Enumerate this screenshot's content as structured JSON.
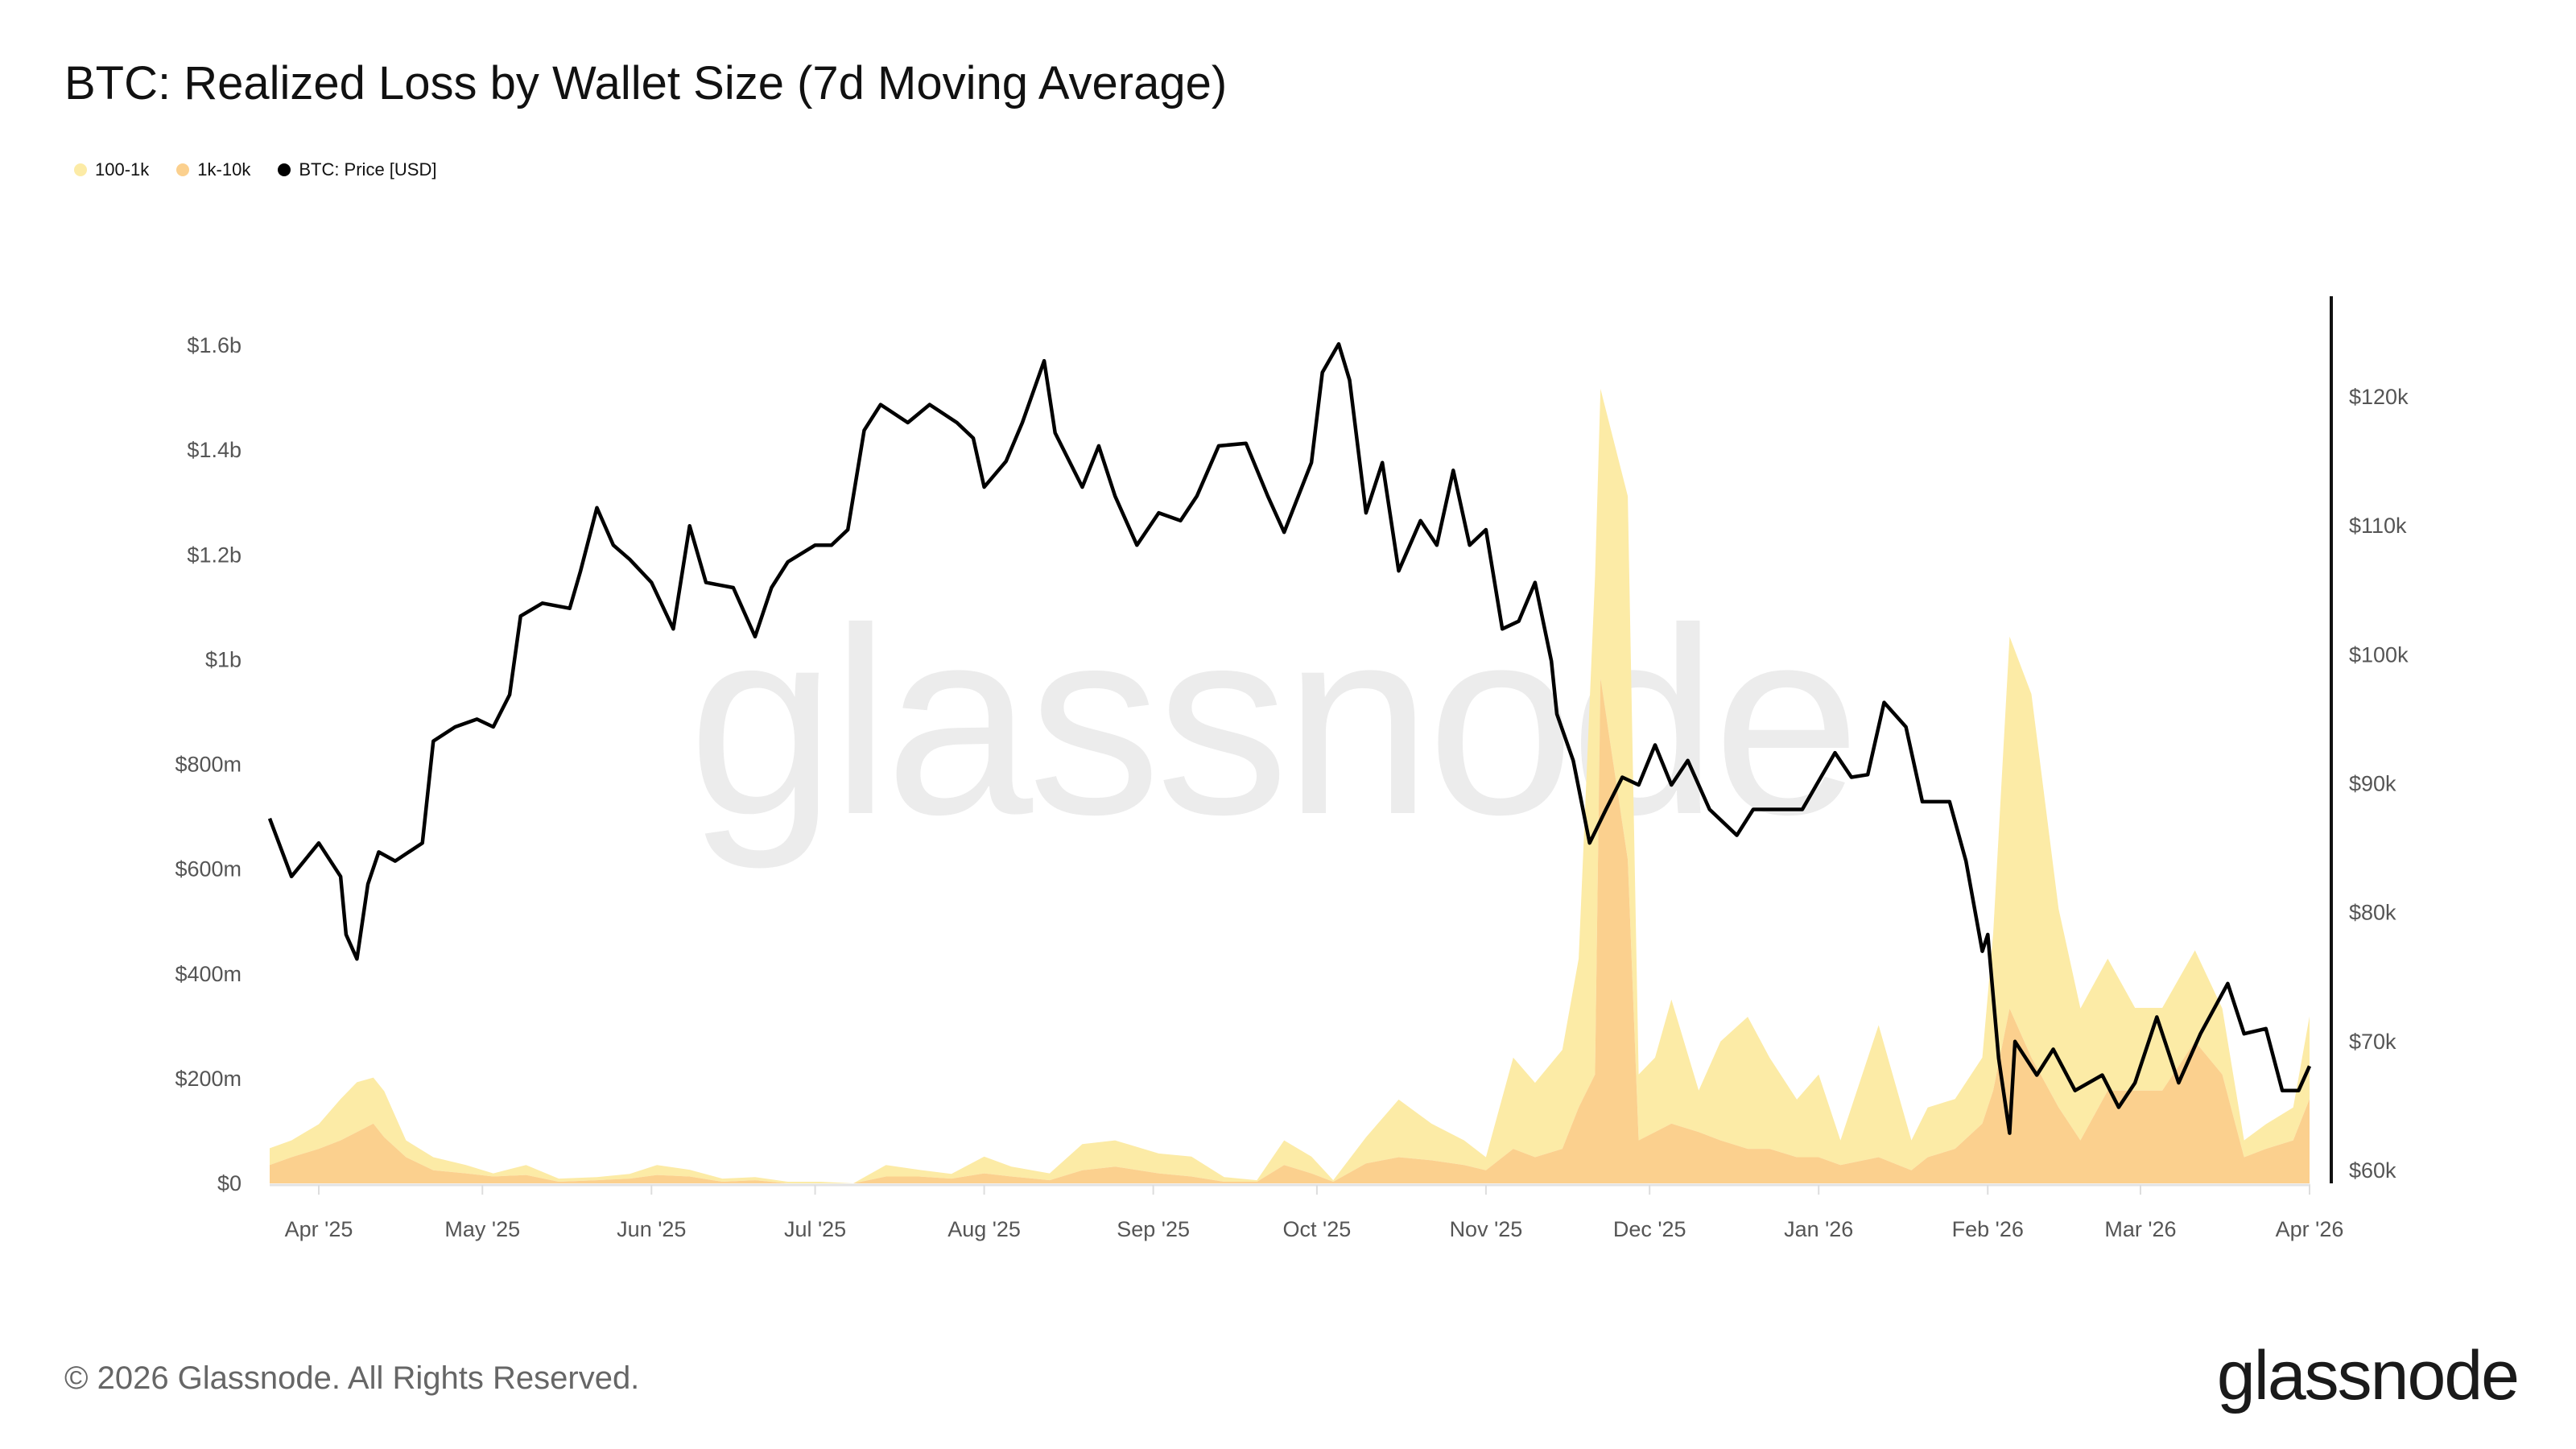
{
  "title": "BTC: Realized Loss by Wallet Size (7d Moving Average)",
  "legend": [
    {
      "label": "100-1k",
      "color": "#FCEBA6"
    },
    {
      "label": "1k-10k",
      "color": "#FBD08E"
    },
    {
      "label": "BTC: Price [USD]",
      "color": "#000000"
    }
  ],
  "watermark": "glassnode",
  "footer": {
    "copyright": "© 2026 Glassnode. All Rights Reserved.",
    "logo": "glassnode"
  },
  "chart_data": {
    "type": "area",
    "stacked": true,
    "title": "BTC: Realized Loss by Wallet Size (7d Moving Average)",
    "x_ticks": [
      "Apr '25",
      "May '25",
      "Jun '25",
      "Jul '25",
      "Aug '25",
      "Sep '25",
      "Oct '25",
      "Nov '25",
      "Dec '25",
      "Jan '26",
      "Feb '26",
      "Mar '26",
      "Apr '26"
    ],
    "x_tick_dates": [
      "2025-04-01",
      "2025-05-01",
      "2025-06-01",
      "2025-07-01",
      "2025-08-01",
      "2025-09-01",
      "2025-10-01",
      "2025-11-01",
      "2025-12-01",
      "2026-01-01",
      "2026-02-01",
      "2026-03-01",
      "2026-04-01"
    ],
    "y_left": {
      "unit": "USD",
      "range_millions": [
        0,
        1600
      ],
      "ticks": [
        "$0",
        "$200m",
        "$400m",
        "$600m",
        "$800m",
        "$1b",
        "$1.2b",
        "$1.4b",
        "$1.6b"
      ],
      "tick_values_millions": [
        0,
        200,
        400,
        600,
        800,
        1000,
        1200,
        1400,
        1600
      ]
    },
    "y_right": {
      "unit": "USD",
      "range_thousands": [
        60,
        120
      ],
      "ticks": [
        "$60k",
        "$70k",
        "$80k",
        "$90k",
        "$100k",
        "$110k",
        "$120k"
      ],
      "tick_values_thousands": [
        60,
        70,
        80,
        90,
        100,
        110,
        120
      ]
    },
    "grid": false,
    "legend_position": "top-left",
    "loss_dates": [
      "2025-03-23",
      "2025-03-27",
      "2025-04-01",
      "2025-04-05",
      "2025-04-08",
      "2025-04-11",
      "2025-04-13",
      "2025-04-17",
      "2025-04-22",
      "2025-04-28",
      "2025-05-03",
      "2025-05-09",
      "2025-05-15",
      "2025-05-22",
      "2025-05-28",
      "2025-06-02",
      "2025-06-08",
      "2025-06-14",
      "2025-06-20",
      "2025-06-26",
      "2025-07-02",
      "2025-07-08",
      "2025-07-14",
      "2025-07-20",
      "2025-07-26",
      "2025-08-01",
      "2025-08-06",
      "2025-08-13",
      "2025-08-19",
      "2025-08-25",
      "2025-09-02",
      "2025-09-08",
      "2025-09-14",
      "2025-09-20",
      "2025-09-25",
      "2025-09-30",
      "2025-10-04",
      "2025-10-10",
      "2025-10-16",
      "2025-10-22",
      "2025-10-28",
      "2025-11-01",
      "2025-11-06",
      "2025-11-10",
      "2025-11-15",
      "2025-11-18",
      "2025-11-21",
      "2025-11-22",
      "2025-11-27",
      "2025-11-29",
      "2025-12-02",
      "2025-12-05",
      "2025-12-10",
      "2025-12-14",
      "2025-12-19",
      "2025-12-23",
      "2025-12-28",
      "2026-01-01",
      "2026-01-05",
      "2026-01-12",
      "2026-01-18",
      "2026-01-21",
      "2026-01-26",
      "2026-01-31",
      "2026-02-02",
      "2026-02-05",
      "2026-02-09",
      "2026-02-14",
      "2026-02-18",
      "2026-02-23",
      "2026-02-28",
      "2026-03-05",
      "2026-03-11",
      "2026-03-16",
      "2026-03-20",
      "2026-03-24",
      "2026-03-29",
      "2026-04-01"
    ],
    "series": [
      {
        "name": "1k-10k",
        "axis": "left",
        "unit": "USD millions",
        "color": "#FBD08E",
        "values": [
          35,
          50,
          66,
          82,
          98,
          114,
          88,
          50,
          25,
          19,
          13,
          16,
          3,
          6,
          9,
          16,
          13,
          3,
          6,
          0,
          0,
          0,
          13,
          13,
          9,
          19,
          13,
          6,
          25,
          32,
          19,
          13,
          3,
          3,
          35,
          19,
          3,
          38,
          50,
          44,
          35,
          25,
          66,
          50,
          66,
          145,
          208,
          965,
          618,
          82,
          98,
          114,
          98,
          82,
          66,
          66,
          50,
          50,
          35,
          50,
          25,
          50,
          66,
          114,
          177,
          334,
          240,
          145,
          82,
          177,
          177,
          177,
          271,
          208,
          50,
          66,
          82,
          161
        ]
      },
      {
        "name": "100-1k",
        "axis": "left",
        "unit": "USD millions",
        "color": "#FCEBA6",
        "values": [
          32,
          32,
          47,
          79,
          95,
          88,
          88,
          32,
          25,
          16,
          6,
          19,
          6,
          6,
          9,
          19,
          13,
          6,
          6,
          3,
          3,
          0,
          22,
          13,
          9,
          32,
          19,
          13,
          50,
          50,
          38,
          38,
          9,
          3,
          47,
          32,
          3,
          50,
          110,
          70,
          47,
          25,
          174,
          142,
          189,
          284,
          950,
          552,
          694,
          126,
          142,
          237,
          79,
          189,
          252,
          174,
          110,
          158,
          47,
          252,
          57,
          95,
          95,
          126,
          300,
          710,
          694,
          379,
          252,
          252,
          158,
          158,
          174,
          126,
          32,
          47,
          63,
          158
        ]
      },
      {
        "name": "BTC: Price [USD]",
        "axis": "right",
        "type": "line",
        "unit": "USD thousands",
        "color": "#000000",
        "dates": [
          "2025-03-23",
          "2025-03-27",
          "2025-04-01",
          "2025-04-05",
          "2025-04-06",
          "2025-04-08",
          "2025-04-10",
          "2025-04-12",
          "2025-04-15",
          "2025-04-20",
          "2025-04-22",
          "2025-04-26",
          "2025-04-30",
          "2025-05-03",
          "2025-05-06",
          "2025-05-08",
          "2025-05-12",
          "2025-05-17",
          "2025-05-19",
          "2025-05-22",
          "2025-05-25",
          "2025-05-28",
          "2025-06-01",
          "2025-06-05",
          "2025-06-08",
          "2025-06-11",
          "2025-06-16",
          "2025-06-20",
          "2025-06-23",
          "2025-06-26",
          "2025-07-01",
          "2025-07-04",
          "2025-07-07",
          "2025-07-10",
          "2025-07-13",
          "2025-07-18",
          "2025-07-22",
          "2025-07-27",
          "2025-07-30",
          "2025-08-01",
          "2025-08-05",
          "2025-08-08",
          "2025-08-12",
          "2025-08-14",
          "2025-08-19",
          "2025-08-22",
          "2025-08-25",
          "2025-08-29",
          "2025-09-02",
          "2025-09-06",
          "2025-09-09",
          "2025-09-13",
          "2025-09-18",
          "2025-09-22",
          "2025-09-25",
          "2025-09-30",
          "2025-10-02",
          "2025-10-05",
          "2025-10-07",
          "2025-10-10",
          "2025-10-13",
          "2025-10-16",
          "2025-10-20",
          "2025-10-23",
          "2025-10-26",
          "2025-10-29",
          "2025-11-01",
          "2025-11-04",
          "2025-11-07",
          "2025-11-10",
          "2025-11-13",
          "2025-11-14",
          "2025-11-17",
          "2025-11-20",
          "2025-11-23",
          "2025-11-26",
          "2025-11-29",
          "2025-12-02",
          "2025-12-05",
          "2025-12-08",
          "2025-12-12",
          "2025-12-17",
          "2025-12-20",
          "2025-12-24",
          "2025-12-29",
          "2026-01-04",
          "2026-01-07",
          "2026-01-10",
          "2026-01-13",
          "2026-01-17",
          "2026-01-20",
          "2026-01-25",
          "2026-01-28",
          "2026-01-31",
          "2026-02-01",
          "2026-02-03",
          "2026-02-05",
          "2026-02-06",
          "2026-02-10",
          "2026-02-13",
          "2026-02-17",
          "2026-02-22",
          "2026-02-25",
          "2026-02-28",
          "2026-03-04",
          "2026-03-08",
          "2026-03-12",
          "2026-03-17",
          "2026-03-20",
          "2026-03-24",
          "2026-03-27",
          "2026-03-30",
          "2026-04-01"
        ],
        "values": [
          87.3,
          82.8,
          85.4,
          82.8,
          78.3,
          76.4,
          82.2,
          84.7,
          84.0,
          85.4,
          93.3,
          94.4,
          95.0,
          94.4,
          96.9,
          103.0,
          104.0,
          103.6,
          106.5,
          111.4,
          108.5,
          107.4,
          105.6,
          102.0,
          110.0,
          105.6,
          105.2,
          101.4,
          105.2,
          107.2,
          108.5,
          108.5,
          109.7,
          117.4,
          119.4,
          118.0,
          119.4,
          118.0,
          116.8,
          113.0,
          115.0,
          118.0,
          122.8,
          117.2,
          113.0,
          116.2,
          112.3,
          108.5,
          111.0,
          110.4,
          112.3,
          116.2,
          116.4,
          112.3,
          109.5,
          114.9,
          121.9,
          124.1,
          121.3,
          111.0,
          114.9,
          106.5,
          110.4,
          108.5,
          114.3,
          108.5,
          109.7,
          102.0,
          102.6,
          105.6,
          99.5,
          95.4,
          91.8,
          85.4,
          88.0,
          90.5,
          89.9,
          93.0,
          89.9,
          91.8,
          88.0,
          86.0,
          88.0,
          88.0,
          88.0,
          92.4,
          90.5,
          90.7,
          96.3,
          94.4,
          88.6,
          88.6,
          84.0,
          77.0,
          78.3,
          68.7,
          62.9,
          70.0,
          67.4,
          69.4,
          66.2,
          67.4,
          64.9,
          66.8,
          71.9,
          66.8,
          70.6,
          74.5,
          70.6,
          71.0,
          66.2,
          66.2,
          68.1
        ]
      }
    ]
  }
}
